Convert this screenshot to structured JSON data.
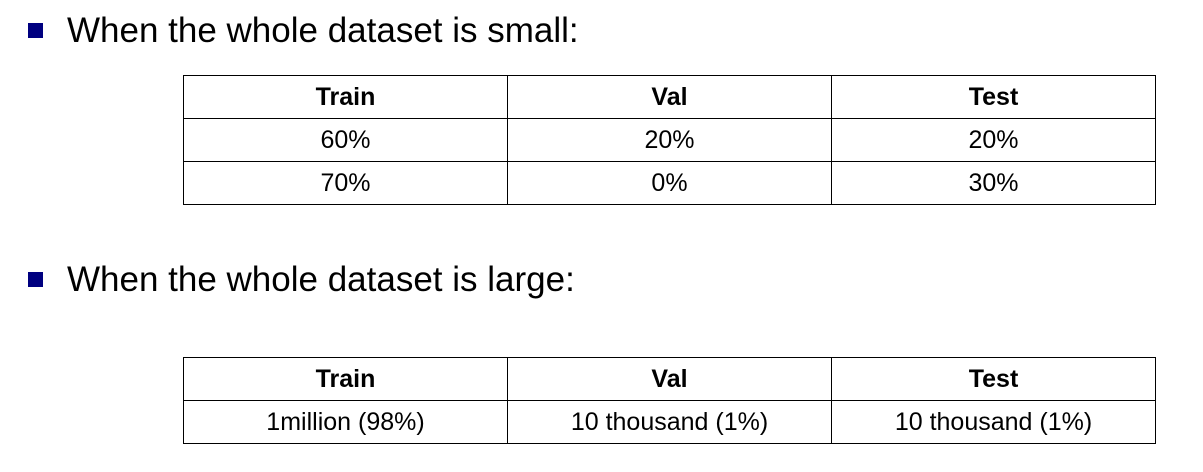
{
  "sections": [
    {
      "bullet": "When the whole dataset is small:",
      "table": {
        "headers": [
          "Train",
          "Val",
          "Test"
        ],
        "rows": [
          [
            "60%",
            "20%",
            "20%"
          ],
          [
            "70%",
            "0%",
            "30%"
          ]
        ]
      }
    },
    {
      "bullet": "When the whole dataset is large:",
      "table": {
        "headers": [
          "Train",
          "Val",
          "Test"
        ],
        "rows": [
          [
            "1million (98%)",
            "10 thousand (1%)",
            "10 thousand (1%)"
          ]
        ]
      }
    }
  ],
  "colors": {
    "bullet": "#000080"
  }
}
